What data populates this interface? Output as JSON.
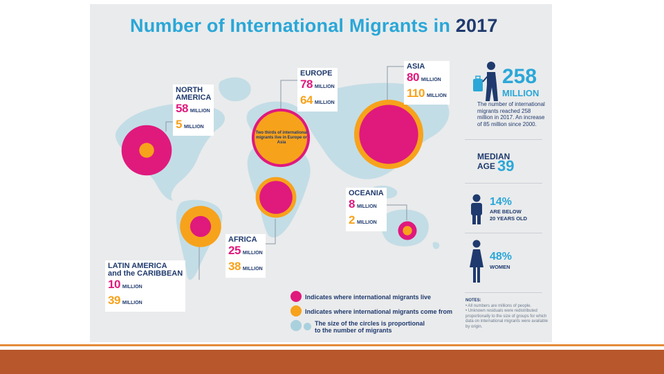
{
  "title": {
    "main": "Number of International Migrants in",
    "year": "2017"
  },
  "colors": {
    "live": "#e0197d",
    "origin": "#f7a21b",
    "navy": "#1f3a6e",
    "blue": "#2aa7d8",
    "map": "#c3dde6"
  },
  "regions": {
    "north_america": {
      "name_line1": "NORTH",
      "name_line2": "AMERICA",
      "live": "58",
      "origin": "5",
      "unit": "MILLION"
    },
    "europe": {
      "name": "EUROPE",
      "live": "78",
      "origin": "64",
      "unit": "MILLION"
    },
    "asia": {
      "name": "ASIA",
      "live": "80",
      "origin": "110",
      "unit": "MILLION"
    },
    "oceania": {
      "name": "OCEANIA",
      "live": "8",
      "origin": "2",
      "unit": "MILLION"
    },
    "africa": {
      "name": "AFRICA",
      "live": "25",
      "origin": "38",
      "unit": "MILLION"
    },
    "latin_america": {
      "name_line1": "LATIN AMERICA",
      "name_line2": "and the CARIBBEAN",
      "live": "10",
      "origin": "39",
      "unit": "MILLION"
    }
  },
  "europe_note": "Two thirds of international migrants live in Europe or Asia",
  "sidebar": {
    "total_number": "258",
    "total_unit": "MILLION",
    "total_desc": "The number of international migrants reached 258 million in 2017. An increase of 85 million since 2000.",
    "median_label_1": "MEDIAN",
    "median_label_2": "AGE",
    "median_value": "39",
    "youth_pct": "14%",
    "youth_desc_1": "ARE BELOW",
    "youth_desc_2": "20 YEARS OLD",
    "women_pct": "48%",
    "women_desc": "WOMEN"
  },
  "legend": {
    "live": "Indicates where international migrants live",
    "origin": "Indicates where international migrants come from",
    "size_1": "The size of the circles is proportional",
    "size_2": "to the number of migrants"
  },
  "notes": {
    "heading": "NOTES:",
    "note1": "• All numbers are millions of people.",
    "note2": "• Unknown residuals were redistributed proportionally to the size of groups for which data on international migrants were available by origin."
  },
  "chart_data": {
    "type": "bubble-map",
    "title": "Number of International Migrants in 2017",
    "unit": "MILLION",
    "series": [
      {
        "name": "Indicates where international migrants live",
        "color": "#e0197d"
      },
      {
        "name": "Indicates where international migrants come from",
        "color": "#f7a21b"
      }
    ],
    "categories": [
      "NORTH AMERICA",
      "EUROPE",
      "ASIA",
      "OCEANIA",
      "AFRICA",
      "LATIN AMERICA and the CARIBBEAN"
    ],
    "live": [
      58,
      78,
      80,
      8,
      25,
      10
    ],
    "origin": [
      5,
      64,
      110,
      2,
      38,
      39
    ]
  }
}
